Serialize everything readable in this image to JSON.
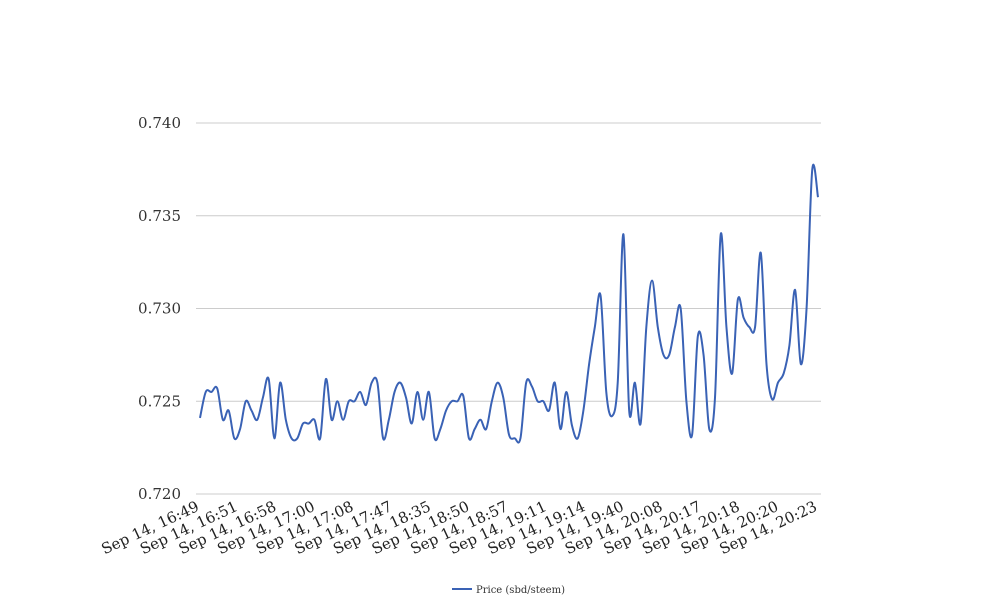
{
  "chart_data": {
    "type": "line",
    "title": "",
    "xlabel": "",
    "ylabel": "",
    "ylim": [
      0.72,
      0.74
    ],
    "yticks": [
      "0.720",
      "0.725",
      "0.730",
      "0.735",
      "0.740"
    ],
    "ytick_values": [
      0.72,
      0.725,
      0.73,
      0.735,
      0.74
    ],
    "grid": true,
    "legend_position": "bottom-center",
    "x_tick_labels": [
      "Sep 14, 16:49",
      "Sep 14, 16:51",
      "Sep 14, 16:58",
      "Sep 14, 17:00",
      "Sep 14, 17:08",
      "Sep 14, 17:47",
      "Sep 14, 18:35",
      "Sep 14, 18:50",
      "Sep 14, 18:57",
      "Sep 14, 19:11",
      "Sep 14, 19:14",
      "Sep 14, 19:40",
      "Sep 14, 20:08",
      "Sep 14, 20:17",
      "Sep 14, 20:18",
      "Sep 14, 20:20",
      "Sep 14, 20:23"
    ],
    "series": [
      {
        "name": "Price (sbd/steem)",
        "color": "#3a62b5",
        "values": [
          0.7241,
          0.7255,
          0.7255,
          0.7257,
          0.724,
          0.7245,
          0.723,
          0.7235,
          0.725,
          0.7245,
          0.724,
          0.7252,
          0.7262,
          0.723,
          0.726,
          0.724,
          0.723,
          0.723,
          0.7238,
          0.7238,
          0.724,
          0.723,
          0.7262,
          0.724,
          0.725,
          0.724,
          0.725,
          0.725,
          0.7255,
          0.7248,
          0.726,
          0.726,
          0.723,
          0.724,
          0.7255,
          0.726,
          0.7252,
          0.7238,
          0.7255,
          0.724,
          0.7255,
          0.723,
          0.7235,
          0.7245,
          0.725,
          0.725,
          0.7253,
          0.723,
          0.7235,
          0.724,
          0.7235,
          0.725,
          0.726,
          0.7252,
          0.7232,
          0.723,
          0.723,
          0.726,
          0.7258,
          0.725,
          0.725,
          0.7245,
          0.726,
          0.7235,
          0.7255,
          0.7237,
          0.723,
          0.7245,
          0.727,
          0.729,
          0.7307,
          0.7255,
          0.7242,
          0.726,
          0.734,
          0.7245,
          0.726,
          0.7238,
          0.729,
          0.7315,
          0.729,
          0.7275,
          0.7275,
          0.729,
          0.73,
          0.725,
          0.7232,
          0.7285,
          0.7275,
          0.7235,
          0.7252,
          0.734,
          0.729,
          0.7265,
          0.7305,
          0.7295,
          0.729,
          0.729,
          0.733,
          0.727,
          0.7251,
          0.726,
          0.7265,
          0.728,
          0.731,
          0.727,
          0.73,
          0.7375,
          0.736
        ]
      }
    ]
  }
}
